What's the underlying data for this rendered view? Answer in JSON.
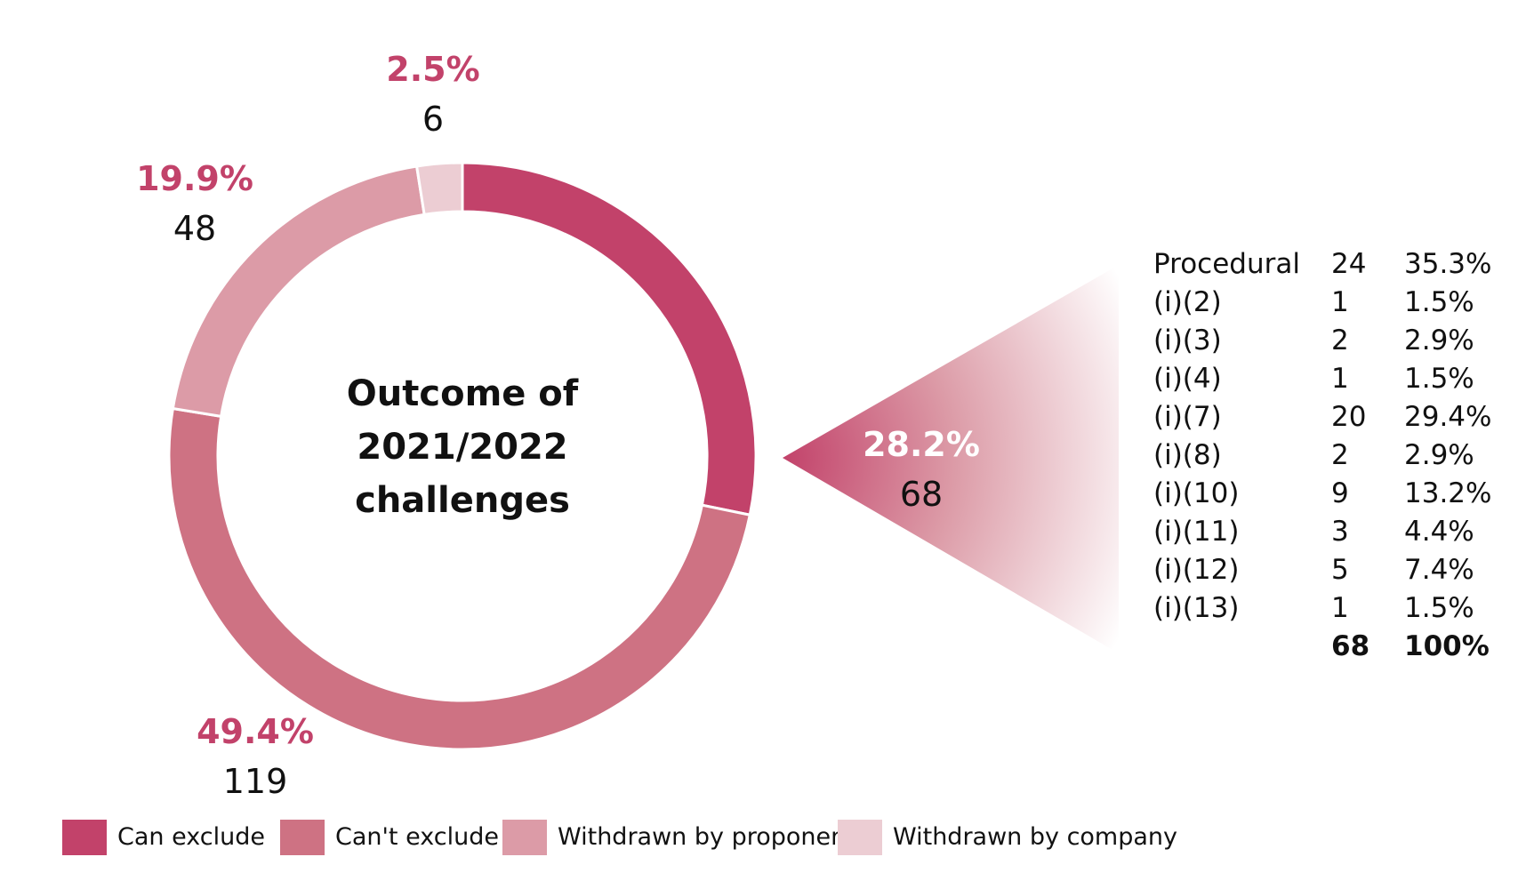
{
  "chart_data": {
    "type": "pie",
    "title": "Outcome of 2021/2022 challenges",
    "title_lines": [
      "Outcome of",
      "2021/2022",
      "challenges"
    ],
    "slices": [
      {
        "name": "Can exclude",
        "value": 68,
        "percent": "28.2%",
        "color": "#c2426a"
      },
      {
        "name": "Can't exclude",
        "value": 119,
        "percent": "49.4%",
        "color": "#ce7283"
      },
      {
        "name": "Withdrawn by proponent",
        "value": 48,
        "percent": "19.9%",
        "color": "#dc9ba7"
      },
      {
        "name": "Withdrawn by company",
        "value": 6,
        "percent": "2.5%",
        "color": "#eccdd3"
      }
    ],
    "legend_position": "bottom-left",
    "breakdown": {
      "of_slice": "Can exclude",
      "rows": [
        {
          "label": "Procedural",
          "count": "24",
          "percent": "35.3%"
        },
        {
          "label": "(i)(2)",
          "count": "1",
          "percent": "1.5%"
        },
        {
          "label": "(i)(3)",
          "count": "2",
          "percent": "2.9%"
        },
        {
          "label": "(i)(4)",
          "count": "1",
          "percent": "1.5%"
        },
        {
          "label": "(i)(7)",
          "count": "20",
          "percent": "29.4%"
        },
        {
          "label": "(i)(8)",
          "count": "2",
          "percent": "2.9%"
        },
        {
          "label": "(i)(10)",
          "count": "9",
          "percent": "13.2%"
        },
        {
          "label": "(i)(11)",
          "count": "3",
          "percent": "4.4%"
        },
        {
          "label": "(i)(12)",
          "count": "5",
          "percent": "7.4%"
        },
        {
          "label": "(i)(13)",
          "count": "1",
          "percent": "1.5%"
        }
      ],
      "total": {
        "count": "68",
        "percent": "100%"
      }
    }
  },
  "label_colors": {
    "percent": "#c2426a",
    "callout_percent": "#ffffff"
  }
}
